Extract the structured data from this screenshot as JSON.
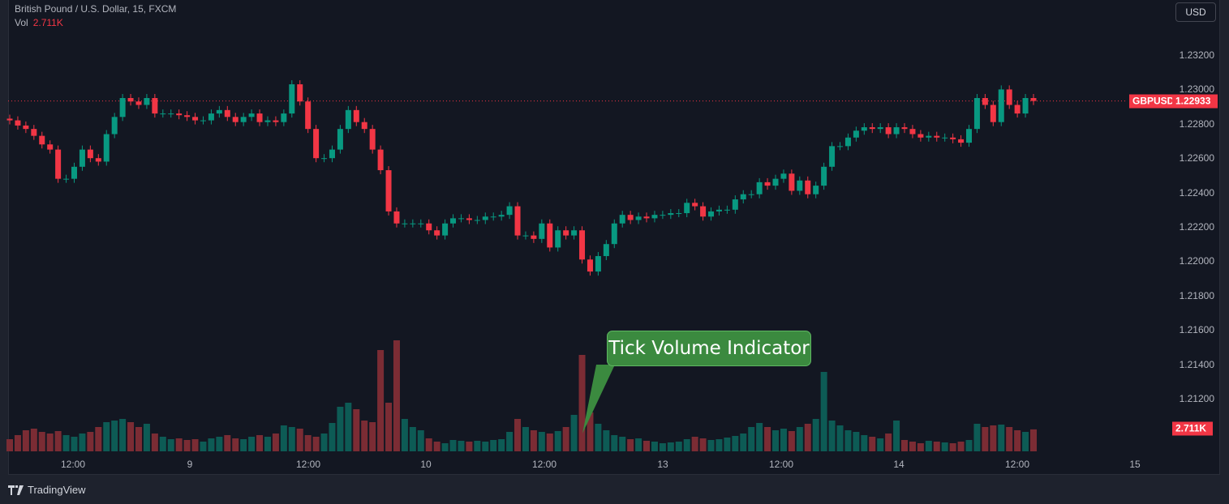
{
  "header": {
    "symbol_title": "British Pound / U.S. Dollar, 15, FXCM",
    "vol_label": "Vol",
    "vol_value": "2.711K"
  },
  "currency_button": "USD",
  "price_axis": {
    "ticks": [
      "1.23200",
      "1.23000",
      "1.22800",
      "1.22600",
      "1.22400",
      "1.22200",
      "1.22000",
      "1.21800",
      "1.21600",
      "1.21400",
      "1.21200"
    ],
    "symbol_badge": "GBPUSD",
    "last_price": "1.22933",
    "volume_badge": "2.711K"
  },
  "time_axis": {
    "ticks": [
      "12:00",
      "9",
      "12:00",
      "10",
      "12:00",
      "13",
      "12:00",
      "14",
      "12:00",
      "15"
    ]
  },
  "annotation": "Tick Volume Indicator",
  "branding": "TradingView",
  "colors": {
    "up": "#089981",
    "down": "#f23645",
    "volume_up": "#0d5b55",
    "volume_down": "#7b2c34",
    "background": "#131722",
    "annotation": "#3b8a3f"
  },
  "chart_data": {
    "type": "candlestick",
    "title": "British Pound / U.S. Dollar, 15, FXCM",
    "ylim": [
      1.2115,
      1.2335
    ],
    "grid": false,
    "last_price": 1.22933,
    "close": [
      1.2282,
      1.2279,
      1.2277,
      1.2273,
      1.2268,
      1.2265,
      1.2248,
      1.2248,
      1.2255,
      1.2265,
      1.226,
      1.2258,
      1.2274,
      1.2284,
      1.2295,
      1.2293,
      1.2291,
      1.2295,
      1.2286,
      1.2286,
      1.2286,
      1.2285,
      1.2284,
      1.2282,
      1.2282,
      1.2286,
      1.2288,
      1.2284,
      1.2281,
      1.2284,
      1.2286,
      1.2281,
      1.2282,
      1.2281,
      1.2286,
      1.2303,
      1.2293,
      1.2277,
      1.226,
      1.226,
      1.2265,
      1.2277,
      1.2288,
      1.2281,
      1.2277,
      1.2265,
      1.2253,
      1.2229,
      1.2222,
      1.2222,
      1.2222,
      1.2222,
      1.2218,
      1.2215,
      1.2222,
      1.2225,
      1.2225,
      1.2224,
      1.2224,
      1.2226,
      1.2226,
      1.2227,
      1.2232,
      1.2215,
      1.2215,
      1.2213,
      1.2222,
      1.2208,
      1.2218,
      1.2215,
      1.2218,
      1.2201,
      1.2194,
      1.2203,
      1.221,
      1.2222,
      1.2227,
      1.2224,
      1.2226,
      1.2225,
      1.2227,
      1.2227,
      1.2228,
      1.2228,
      1.2234,
      1.2232,
      1.2226,
      1.2229,
      1.223,
      1.223,
      1.2236,
      1.2239,
      1.2239,
      1.2246,
      1.2244,
      1.2248,
      1.2251,
      1.2241,
      1.2247,
      1.2239,
      1.2244,
      1.2255,
      1.2267,
      1.2267,
      1.2272,
      1.2276,
      1.2278,
      1.2277,
      1.2278,
      1.2274,
      1.2278,
      1.2277,
      1.2274,
      1.2272,
      1.2273,
      1.2272,
      1.2272,
      1.2271,
      1.2269,
      1.2277,
      1.2295,
      1.2291,
      1.2281,
      1.23,
      1.2291,
      1.2286,
      1.2295,
      1.22933
    ],
    "volume_k": [
      1.5,
      2.0,
      2.6,
      2.8,
      2.4,
      2.2,
      2.5,
      2.0,
      1.8,
      2.2,
      2.4,
      3.0,
      3.6,
      3.8,
      4.0,
      3.6,
      3.0,
      3.4,
      2.2,
      1.8,
      1.5,
      1.6,
      1.4,
      1.5,
      1.2,
      1.6,
      1.8,
      2.0,
      1.6,
      1.5,
      1.8,
      2.0,
      1.8,
      2.2,
      3.2,
      3.0,
      2.8,
      2.0,
      1.8,
      2.2,
      3.5,
      5.5,
      6.0,
      5.2,
      3.8,
      3.6,
      12.5,
      6.0,
      13.7,
      4.0,
      3.0,
      2.6,
      1.6,
      1.2,
      1.0,
      1.4,
      1.3,
      1.2,
      1.3,
      1.2,
      1.4,
      1.5,
      2.4,
      4.0,
      3.0,
      2.6,
      2.4,
      2.2,
      2.5,
      3.0,
      4.5,
      11.9,
      4.8,
      3.4,
      2.6,
      2.0,
      1.8,
      1.5,
      1.6,
      1.3,
      1.2,
      1.0,
      1.1,
      1.2,
      1.5,
      1.8,
      1.6,
      1.4,
      1.5,
      1.7,
      1.9,
      2.2,
      3.0,
      3.5,
      3.0,
      2.6,
      2.8,
      2.5,
      3.0,
      3.4,
      4.0,
      9.8,
      3.8,
      3.2,
      2.6,
      2.4,
      2.0,
      1.8,
      1.6,
      2.2,
      3.8,
      1.4,
      1.2,
      1.0,
      1.3,
      1.2,
      1.1,
      1.0,
      1.2,
      1.4,
      3.4,
      3.0,
      3.2,
      3.3,
      3.0,
      2.6,
      2.4,
      2.711
    ]
  }
}
